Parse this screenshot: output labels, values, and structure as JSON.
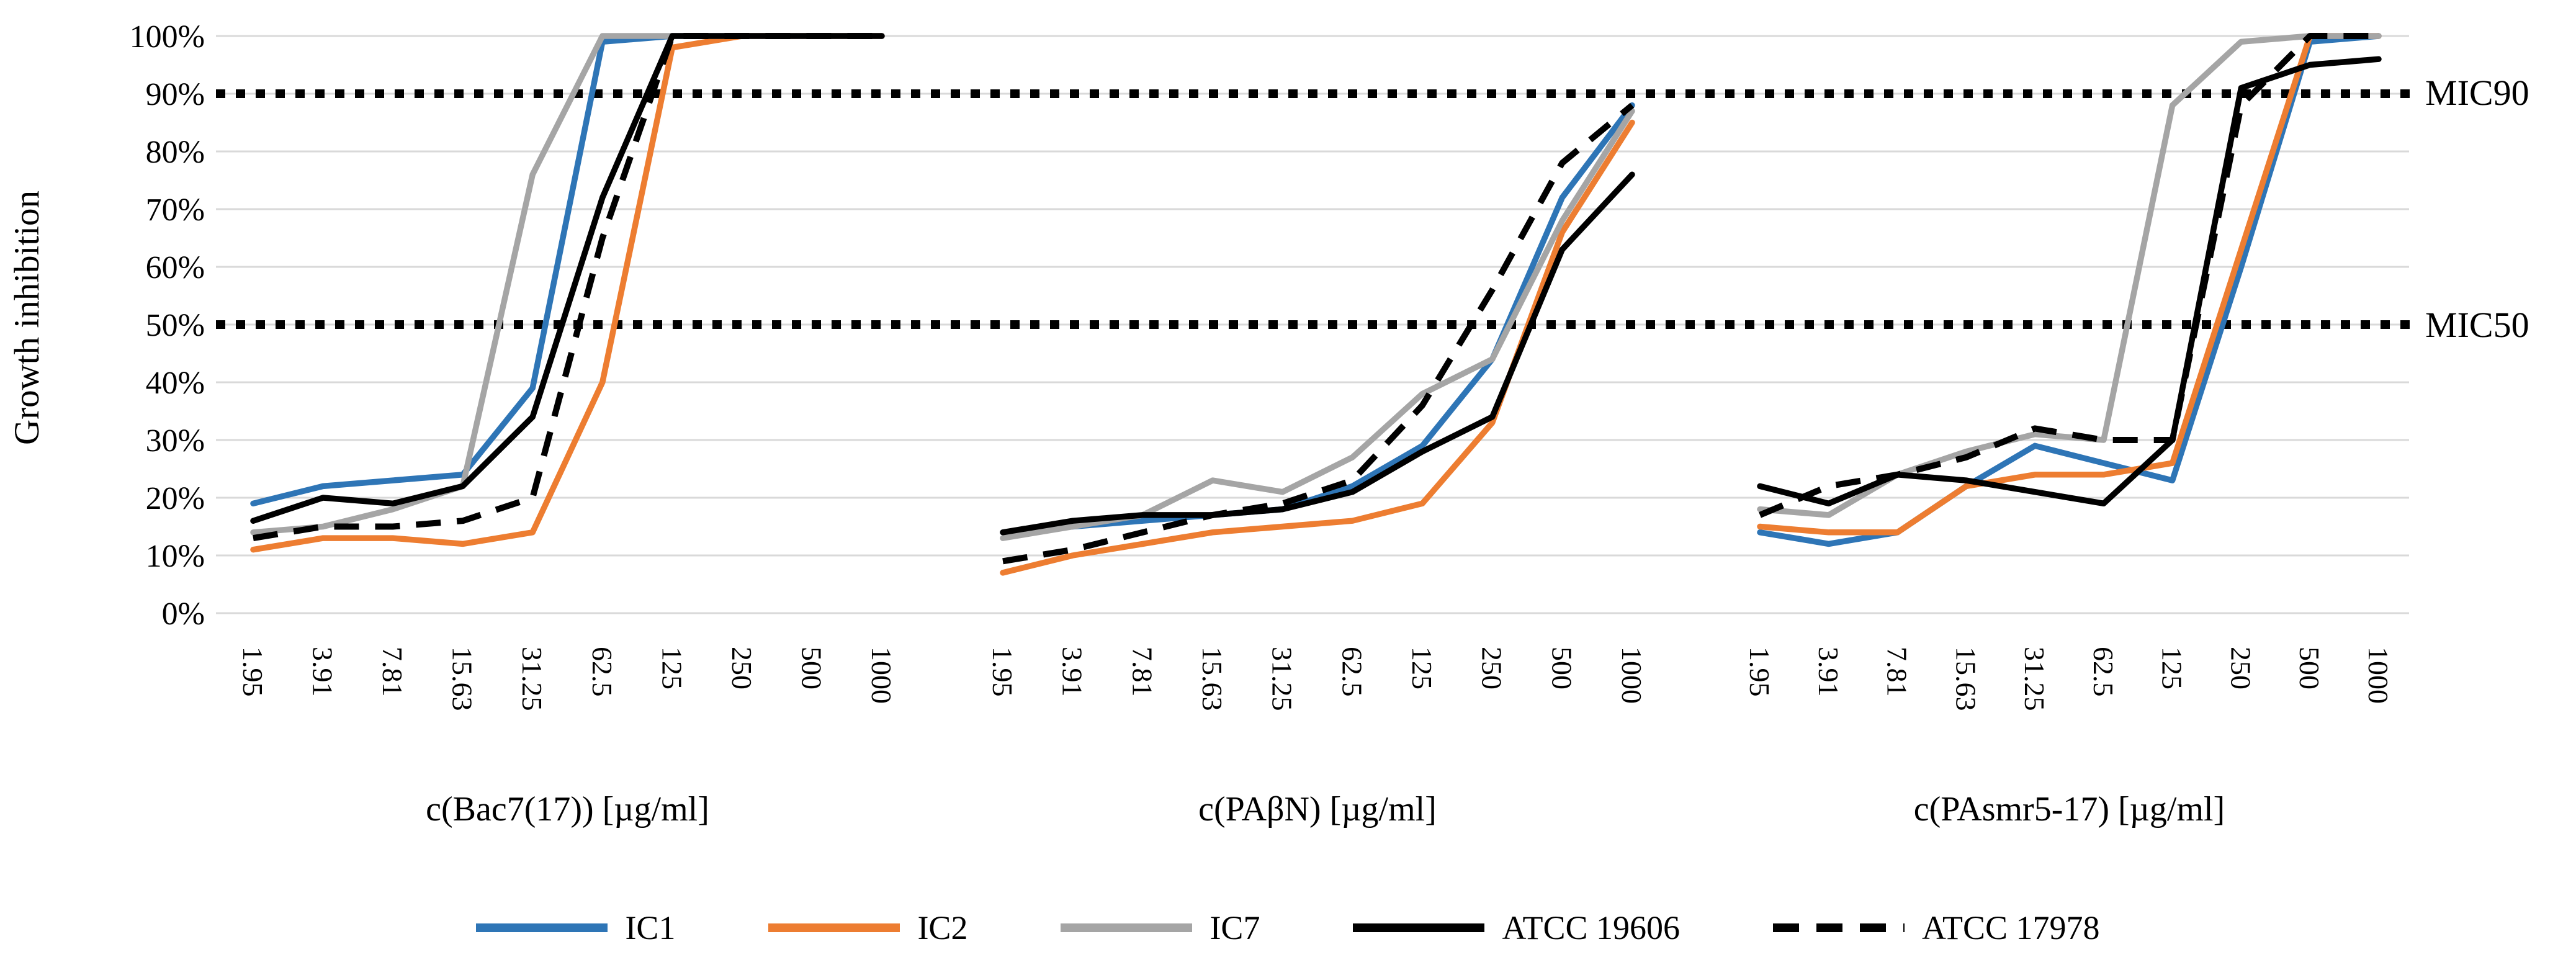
{
  "y_axis": {
    "title": "Growth inhibition",
    "ticks": [
      "100%",
      "90%",
      "80%",
      "70%",
      "60%",
      "50%",
      "40%",
      "30%",
      "20%",
      "10%",
      "0%"
    ],
    "min": 0,
    "max": 100
  },
  "annotations": {
    "mic90_label": "MIC90",
    "mic50_label": "MIC50",
    "mic90_value": 90,
    "mic50_value": 50,
    "line_style": "dotted",
    "line_color": "#000000"
  },
  "colors": {
    "ic1_blue": "#2E75B6",
    "ic2_orange": "#ED7D31",
    "ic7_gray": "#A5A5A5",
    "atcc_black": "#000000",
    "gridline": "#D9D9D9"
  },
  "legend": {
    "items": [
      {
        "label": "IC1",
        "color": "#2E75B6",
        "style": "solid"
      },
      {
        "label": "IC2",
        "color": "#ED7D31",
        "style": "solid"
      },
      {
        "label": "IC7",
        "color": "#A5A5A5",
        "style": "solid"
      },
      {
        "label": "ATCC 19606",
        "color": "#000000",
        "style": "solid"
      },
      {
        "label": "ATCC 17978",
        "color": "#000000",
        "style": "dashed"
      }
    ]
  },
  "chart_data": [
    {
      "type": "line",
      "title": "c(Bac7(17)) [µg/ml]",
      "categories": [
        "1.95",
        "3.91",
        "7.81",
        "15.63",
        "31.25",
        "62.5",
        "125",
        "250",
        "500",
        "1000"
      ],
      "ylabel": "Growth inhibition",
      "ylim": [
        0,
        100
      ],
      "grid": true,
      "series": [
        {
          "name": "IC1",
          "color": "#2E75B6",
          "dash": "solid",
          "values": [
            19,
            22,
            23,
            24,
            39,
            99,
            100,
            100,
            100,
            100
          ]
        },
        {
          "name": "IC2",
          "color": "#ED7D31",
          "dash": "solid",
          "values": [
            11,
            13,
            13,
            12,
            14,
            40,
            98,
            100,
            100,
            100
          ]
        },
        {
          "name": "IC7",
          "color": "#A5A5A5",
          "dash": "solid",
          "values": [
            14,
            15,
            18,
            22,
            76,
            100,
            100,
            100,
            100,
            100
          ]
        },
        {
          "name": "ATCC 19606",
          "color": "#000000",
          "dash": "solid",
          "values": [
            16,
            20,
            19,
            22,
            34,
            72,
            100,
            100,
            100,
            100
          ]
        },
        {
          "name": "ATCC 17978",
          "color": "#000000",
          "dash": "dashed",
          "values": [
            13,
            15,
            15,
            16,
            20,
            65,
            100,
            100,
            100,
            100
          ]
        }
      ]
    },
    {
      "type": "line",
      "title": "c(PAβN) [µg/ml]",
      "categories": [
        "1.95",
        "3.91",
        "7.81",
        "15.63",
        "31.25",
        "62.5",
        "125",
        "250",
        "500",
        "1000"
      ],
      "ylabel": "Growth inhibition",
      "ylim": [
        0,
        100
      ],
      "grid": true,
      "series": [
        {
          "name": "IC1",
          "color": "#2E75B6",
          "dash": "solid",
          "values": [
            14,
            15,
            16,
            17,
            18,
            22,
            29,
            44,
            72,
            88
          ]
        },
        {
          "name": "IC2",
          "color": "#ED7D31",
          "dash": "solid",
          "values": [
            7,
            10,
            12,
            14,
            15,
            16,
            19,
            33,
            66,
            85
          ]
        },
        {
          "name": "IC7",
          "color": "#A5A5A5",
          "dash": "solid",
          "values": [
            13,
            15,
            17,
            23,
            21,
            27,
            38,
            44,
            68,
            87
          ]
        },
        {
          "name": "ATCC 19606",
          "color": "#000000",
          "dash": "solid",
          "values": [
            14,
            16,
            17,
            17,
            18,
            21,
            28,
            34,
            63,
            76
          ]
        },
        {
          "name": "ATCC 17978",
          "color": "#000000",
          "dash": "dashed",
          "values": [
            9,
            11,
            14,
            17,
            19,
            23,
            36,
            56,
            78,
            88
          ]
        }
      ]
    },
    {
      "type": "line",
      "title": "c(PAsmr5-17) [µg/ml]",
      "categories": [
        "1.95",
        "3.91",
        "7.81",
        "15.63",
        "31.25",
        "62.5",
        "125",
        "250",
        "500",
        "1000"
      ],
      "ylabel": "Growth inhibition",
      "ylim": [
        0,
        100
      ],
      "grid": true,
      "series": [
        {
          "name": "IC1",
          "color": "#2E75B6",
          "dash": "solid",
          "values": [
            14,
            12,
            14,
            22,
            29,
            26,
            23,
            60,
            99,
            100
          ]
        },
        {
          "name": "IC2",
          "color": "#ED7D31",
          "dash": "solid",
          "values": [
            15,
            14,
            14,
            22,
            24,
            24,
            26,
            63,
            100,
            100
          ]
        },
        {
          "name": "IC7",
          "color": "#A5A5A5",
          "dash": "solid",
          "values": [
            18,
            17,
            24,
            28,
            31,
            30,
            88,
            99,
            100,
            100
          ]
        },
        {
          "name": "ATCC 19606",
          "color": "#000000",
          "dash": "solid",
          "values": [
            22,
            19,
            24,
            23,
            21,
            19,
            30,
            91,
            95,
            96
          ]
        },
        {
          "name": "ATCC 17978",
          "color": "#000000",
          "dash": "dashed",
          "values": [
            17,
            22,
            24,
            27,
            32,
            30,
            30,
            88,
            100,
            100
          ]
        }
      ]
    }
  ]
}
